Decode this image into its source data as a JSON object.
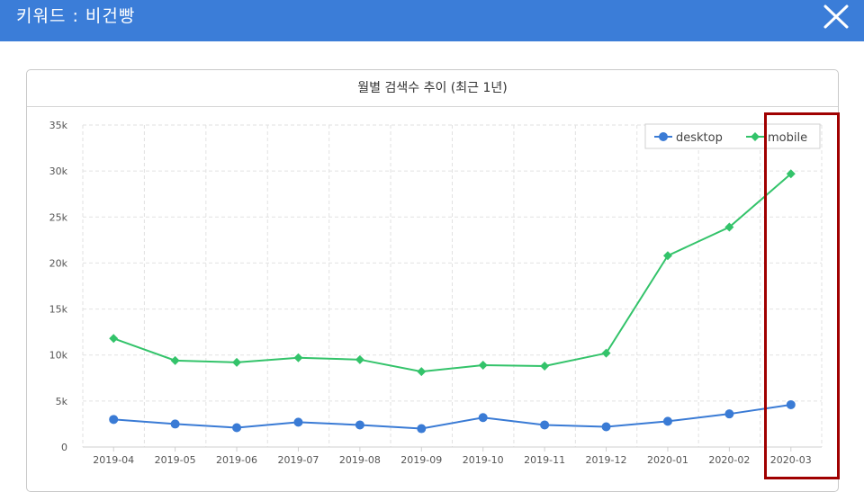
{
  "header": {
    "title": "키워드 : 비건빵",
    "close_icon": "close-icon"
  },
  "panel": {
    "title": "월별 검색수 추이 (최근 1년)"
  },
  "colors": {
    "header_bg": "#3b7dd8",
    "desktop": "#3a7bd5",
    "mobile": "#33c36a",
    "highlight": "#a00000"
  },
  "chart_data": {
    "type": "line",
    "categories": [
      "2019-04",
      "2019-05",
      "2019-06",
      "2019-07",
      "2019-08",
      "2019-09",
      "2019-10",
      "2019-11",
      "2019-12",
      "2020-01",
      "2020-02",
      "2020-03"
    ],
    "series": [
      {
        "name": "desktop",
        "values": [
          3000,
          2500,
          2100,
          2700,
          2400,
          2000,
          3200,
          2400,
          2200,
          2800,
          3600,
          4600
        ]
      },
      {
        "name": "mobile",
        "values": [
          11800,
          9400,
          9200,
          9700,
          9500,
          8200,
          8900,
          8800,
          10200,
          20800,
          23900,
          29700
        ]
      }
    ],
    "ylim": [
      0,
      35000
    ],
    "yticks": [
      {
        "value": 0,
        "label": "0"
      },
      {
        "value": 5000,
        "label": "5k"
      },
      {
        "value": 10000,
        "label": "10k"
      },
      {
        "value": 15000,
        "label": "15k"
      },
      {
        "value": 20000,
        "label": "20k"
      },
      {
        "value": 25000,
        "label": "25k"
      },
      {
        "value": 30000,
        "label": "30k"
      },
      {
        "value": 35000,
        "label": "35k"
      }
    ],
    "grid": true,
    "legend": "top-right"
  }
}
